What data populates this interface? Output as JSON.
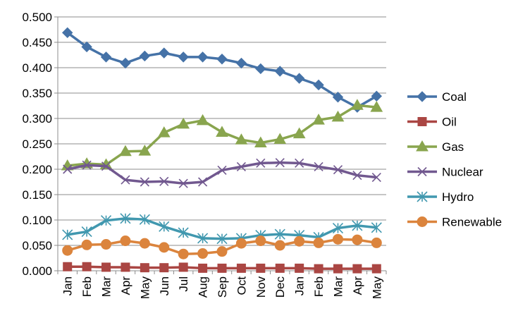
{
  "chart_data": {
    "type": "line",
    "title": "",
    "xlabel": "",
    "ylabel": "",
    "categories": [
      "Jan",
      "Feb",
      "Mar",
      "Apr",
      "May",
      "Jun",
      "Jul",
      "Aug",
      "Sep",
      "Oct",
      "Nov",
      "Dec",
      "Jan",
      "Feb",
      "Mar",
      "Apr",
      "May"
    ],
    "ylim": [
      0,
      0.5
    ],
    "ytick_values": [
      0.0,
      0.05,
      0.1,
      0.15,
      0.2,
      0.25,
      0.3,
      0.35,
      0.4,
      0.45,
      0.5
    ],
    "ytick_labels": [
      "0.000",
      "0.050",
      "0.100",
      "0.150",
      "0.200",
      "0.250",
      "0.300",
      "0.350",
      "0.400",
      "0.450",
      "0.500"
    ],
    "grid": true,
    "legend_position": "right",
    "series": [
      {
        "name": "Coal",
        "color": "#4572A7",
        "marker": "diamond",
        "values": [
          0.469,
          0.441,
          0.421,
          0.409,
          0.423,
          0.429,
          0.421,
          0.421,
          0.417,
          0.409,
          0.398,
          0.393,
          0.379,
          0.366,
          0.342,
          0.322,
          0.344
        ]
      },
      {
        "name": "Oil",
        "color": "#AA4643",
        "marker": "square",
        "values": [
          0.008,
          0.008,
          0.007,
          0.007,
          0.006,
          0.006,
          0.007,
          0.005,
          0.005,
          0.005,
          0.005,
          0.005,
          0.005,
          0.004,
          0.004,
          0.004,
          0.004
        ]
      },
      {
        "name": "Gas",
        "color": "#89A54E",
        "marker": "triangle",
        "values": [
          0.207,
          0.211,
          0.209,
          0.235,
          0.236,
          0.272,
          0.289,
          0.296,
          0.273,
          0.258,
          0.252,
          0.259,
          0.27,
          0.297,
          0.303,
          0.326,
          0.322
        ]
      },
      {
        "name": "Nuclear",
        "color": "#71588F",
        "marker": "x",
        "values": [
          0.2,
          0.208,
          0.206,
          0.179,
          0.175,
          0.176,
          0.172,
          0.175,
          0.198,
          0.205,
          0.212,
          0.213,
          0.212,
          0.205,
          0.199,
          0.188,
          0.184
        ]
      },
      {
        "name": "Hydro",
        "color": "#4198AF",
        "marker": "star",
        "values": [
          0.071,
          0.077,
          0.099,
          0.103,
          0.101,
          0.087,
          0.075,
          0.064,
          0.063,
          0.064,
          0.07,
          0.072,
          0.07,
          0.066,
          0.084,
          0.089,
          0.085
        ]
      },
      {
        "name": "Renewable",
        "color": "#DB843D",
        "marker": "circle",
        "values": [
          0.04,
          0.051,
          0.052,
          0.059,
          0.054,
          0.046,
          0.033,
          0.034,
          0.038,
          0.054,
          0.059,
          0.05,
          0.058,
          0.055,
          0.062,
          0.061,
          0.055
        ]
      }
    ]
  }
}
